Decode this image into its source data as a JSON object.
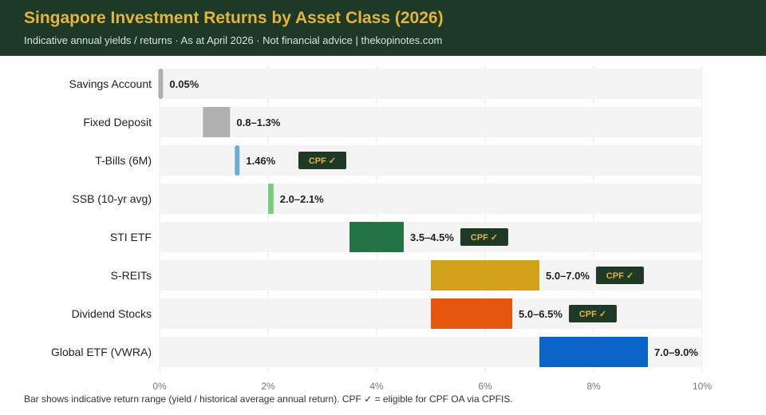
{
  "header": {
    "title": "Singapore Investment Returns by Asset Class (2026)",
    "subtitle": "Indicative annual yields / returns · As at April 2026 · Not financial advice | thekopinotes.com"
  },
  "footnote": "Bar shows indicative return range (yield / historical average annual return). CPF ✓ = eligible for CPF OA via CPFIS.",
  "colors": {
    "header_bg": "#1e3a26",
    "title": "#e2b43a",
    "track": "#f4f4f4",
    "grid": "#ececec",
    "badge_bg": "#1e3a26",
    "badge_text": "#e2b43a"
  },
  "chart_data": {
    "type": "bar",
    "orientation": "horizontal",
    "xlim": [
      0,
      10
    ],
    "x_ticks": [
      0,
      2,
      4,
      6,
      8,
      10
    ],
    "x_tick_labels": [
      "0%",
      "2%",
      "4%",
      "6%",
      "8%",
      "10%"
    ],
    "grid": true,
    "badge_label": "CPF ✓",
    "categories": [
      {
        "name": "Savings Account",
        "low": 0.05,
        "high": 0.05,
        "label": "0.05%",
        "color": "#b0b0b0",
        "cpf": false
      },
      {
        "name": "Fixed Deposit",
        "low": 0.8,
        "high": 1.3,
        "label": "0.8–1.3%",
        "color": "#b0b0b0",
        "cpf": false
      },
      {
        "name": "T-Bills (6M)",
        "low": 1.46,
        "high": 1.46,
        "label": "1.46%",
        "color": "#6aaed6",
        "cpf": true
      },
      {
        "name": "SSB (10-yr avg)",
        "low": 2.0,
        "high": 2.1,
        "label": "2.0–2.1%",
        "color": "#7bcb7d",
        "cpf": false
      },
      {
        "name": "STI ETF",
        "low": 3.5,
        "high": 4.5,
        "label": "3.5–4.5%",
        "color": "#237346",
        "cpf": true
      },
      {
        "name": "S-REITs",
        "low": 5.0,
        "high": 7.0,
        "label": "5.0–7.0%",
        "color": "#d4a11a",
        "cpf": true
      },
      {
        "name": "Dividend Stocks",
        "low": 5.0,
        "high": 6.5,
        "label": "5.0–6.5%",
        "color": "#e6560f",
        "cpf": true
      },
      {
        "name": "Global ETF (VWRA)",
        "low": 7.0,
        "high": 9.0,
        "label": "7.0–9.0%",
        "color": "#0a64c8",
        "cpf": false
      }
    ]
  }
}
